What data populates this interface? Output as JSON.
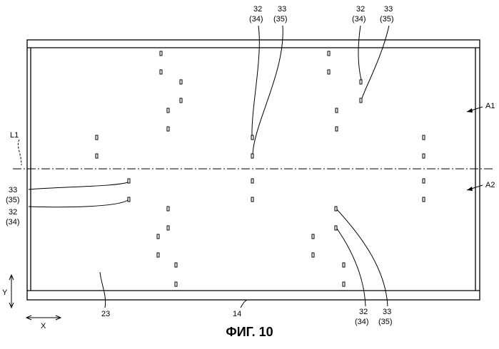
{
  "figure": {
    "caption": "ФИГ. 10"
  },
  "labels": {
    "ref_32": "32",
    "ref_34": "(34)",
    "ref_33": "33",
    "ref_35": "(35)",
    "ref_a1": "A1",
    "ref_a2": "A2",
    "ref_l1": "L1",
    "ref_23": "23",
    "ref_14": "14",
    "axis_y": "Y",
    "axis_x": "X"
  }
}
